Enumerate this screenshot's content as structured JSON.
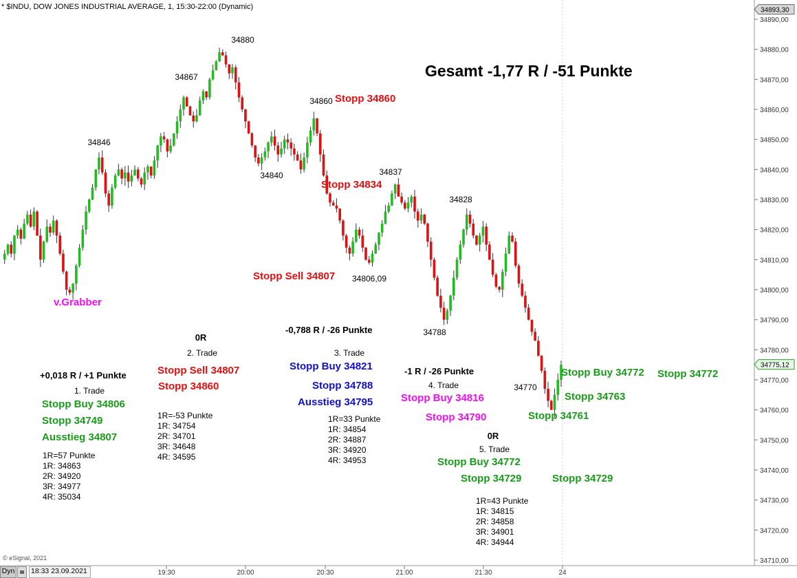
{
  "header": "* $INDU, DOW JONES INDUSTRIAL AVERAGE, 1, 15:30-22:00 (Dynamic)",
  "copyright": "© eSignal, 2021",
  "status": {
    "mode": "Dyn",
    "datetime": "18:33 23.09.2021"
  },
  "colors": {
    "up": "#22bb22",
    "down": "#dd1111",
    "green_text": "#1a9a1a",
    "red_text": "#e01010",
    "blue_text": "#1010d0",
    "magenta_text": "#ee10ee"
  },
  "summary": "Gesamt -1,77 R / -51 Punkte",
  "chart_data": {
    "type": "candlestick",
    "y_ticks": [
      "34890,00",
      "34880,00",
      "34870,00",
      "34860,00",
      "34850,00",
      "34840,00",
      "34830,00",
      "34820,00",
      "34810,00",
      "34800,00",
      "34790,00",
      "34780,00",
      "34770,00",
      "34760,00",
      "34750,00",
      "34740,00",
      "34730,00",
      "34720,00",
      "34710,00"
    ],
    "ylim": [
      34708,
      34894
    ],
    "x_ticks": [
      "19:30",
      "20:00",
      "20:30",
      "21:00",
      "21:30",
      "24"
    ],
    "price_flags": {
      "top": "34893,30",
      "last": "34775,12"
    },
    "path": [
      34810,
      34812,
      34815,
      34812,
      34818,
      34820,
      34817,
      34822,
      34825,
      34821,
      34826,
      34818,
      34810,
      34816,
      34821,
      34819,
      34823,
      34818,
      34812,
      34806,
      34800,
      34799,
      34802,
      34808,
      34814,
      34820,
      34826,
      34830,
      34834,
      34840,
      34844,
      34839,
      34832,
      34828,
      34834,
      34838,
      34840,
      34837,
      34839,
      34836,
      34838,
      34840,
      34837,
      34835,
      34839,
      34841,
      34838,
      34843,
      34848,
      34851,
      34850,
      34846,
      34848,
      34852,
      34856,
      34860,
      34864,
      34861,
      34858,
      34856,
      34858,
      34863,
      34866,
      34864,
      34870,
      34873,
      34876,
      34879,
      34878,
      34875,
      34872,
      34874,
      34869,
      34864,
      34860,
      34856,
      34852,
      34848,
      34844,
      34842,
      34844,
      34846,
      34849,
      34851,
      34848,
      34845,
      34847,
      34850,
      34849,
      34847,
      34845,
      34843,
      34840,
      34844,
      34849,
      34853,
      34857,
      34852,
      34845,
      34838,
      34832,
      34829,
      34828,
      34827,
      34823,
      34818,
      34814,
      34812,
      34816,
      34820,
      34818,
      34814,
      34810,
      34809,
      34812,
      34815,
      34819,
      34822,
      34826,
      34828,
      34832,
      34835,
      34831,
      34829,
      34827,
      34829,
      34831,
      34826,
      34823,
      34825,
      34822,
      34816,
      34810,
      34804,
      34798,
      34794,
      34790,
      34793,
      34798,
      34804,
      34810,
      34815,
      34820,
      34825,
      34822,
      34818,
      34815,
      34818,
      34821,
      34815,
      34810,
      34805,
      34801,
      34800,
      34806,
      34812,
      34818,
      34816,
      34808,
      34802,
      34798,
      34794,
      34790,
      34786,
      34783,
      34778,
      34773,
      34767,
      34763,
      34760,
      34765,
      34770,
      34775
    ],
    "labels": [
      {
        "text": "34880"
      },
      {
        "text": "34867"
      },
      {
        "text": "34846"
      },
      {
        "text": "34860"
      },
      {
        "text": "34840"
      },
      {
        "text": "34837"
      },
      {
        "text": "34828"
      },
      {
        "text": "34806,09"
      },
      {
        "text": "34788"
      },
      {
        "text": "34770"
      }
    ]
  },
  "annotations": {
    "vgrabber": "v.Grabber",
    "stopp_34860_top": "Stopp 34860",
    "stopp_34834": "Stopp 34834",
    "stopp_sell_34807_mid": "Stopp Sell 34807",
    "right_stopp_buy": "Stopp Buy 34772",
    "right_stopp_34772": "Stopp 34772",
    "right_stopp_34763": "Stopp 34763",
    "right_stopp_34761": "Stopp 34761",
    "right_stopp_34729": "Stopp 34729"
  },
  "trades": [
    {
      "result": "+0,018 R / +1 Punkte",
      "name": "1. Trade",
      "orders": [
        "Stopp Buy 34806",
        "Stopp 34749",
        "Ausstieg 34807"
      ],
      "levels": [
        "1R=57 Punkte",
        "1R: 34863",
        "2R: 34920",
        "3R: 34977",
        "4R: 35034"
      ]
    },
    {
      "result": "0R",
      "name": "2. Trade",
      "orders": [
        "Stopp Sell 34807",
        "Stopp 34860"
      ],
      "levels": [
        "1R=-53 Punkte",
        "1R: 34754",
        "2R: 34701",
        "3R: 34648",
        "4R: 34595"
      ]
    },
    {
      "result": "-0,788 R / -26 Punkte",
      "name": "3. Trade",
      "orders": [
        "Stopp Buy 34821",
        "Stopp 34788",
        "Ausstieg 34795"
      ],
      "levels": [
        "1R=33 Punkte",
        "1R: 34854",
        "2R: 34887",
        "3R: 34920",
        "4R: 34953"
      ]
    },
    {
      "result": "-1 R / -26 Punkte",
      "name": "4. Trade",
      "orders": [
        "Stopp Buy 34816",
        "Stopp 34790"
      ]
    },
    {
      "result": "0R",
      "name": "5. Trade",
      "orders": [
        "Stopp Buy 34772",
        "Stopp 34729"
      ],
      "levels": [
        "1R=43 Punkte",
        "1R: 34815",
        "2R: 34858",
        "3R: 34901",
        "4R: 34944"
      ]
    }
  ]
}
